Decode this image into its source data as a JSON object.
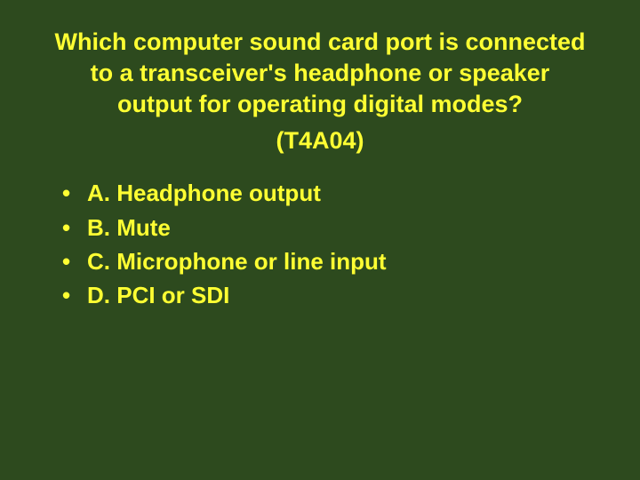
{
  "colors": {
    "background": "#2d4a1e",
    "text": "#ffff33"
  },
  "typography": {
    "title_fontsize": 27,
    "option_fontsize": 26,
    "font_family": "Verdana",
    "font_weight": "bold"
  },
  "question": {
    "text": "Which computer sound card port is connected to a transceiver's headphone or speaker output for operating digital modes?",
    "code": "(T4A04)"
  },
  "options": [
    {
      "label": "A. Headphone output"
    },
    {
      "label": "B. Mute"
    },
    {
      "label": "C. Microphone or line input"
    },
    {
      "label": "D. PCI or SDI"
    }
  ]
}
